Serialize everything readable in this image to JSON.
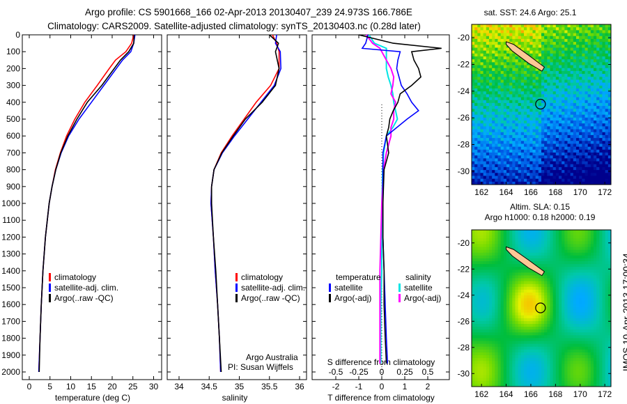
{
  "header": {
    "line1": "Argo profile: CS 5901668_166 02-Apr-2013 20130407_239 24.973S 166.786E",
    "line2": "Climatology: CARS2009. Satellite-adjusted climatology: synTS_20130403.nc (0.28d later)"
  },
  "footer_stamp": "IMOS 10-Apr-2013 17:00:34",
  "colors": {
    "clim": "#ff0000",
    "sat": "#0000ff",
    "argo": "#000000",
    "cyan": "#00e5e5",
    "magenta": "#ff00ff"
  },
  "chart_data": [
    {
      "type": "line",
      "id": "temp",
      "xlabel": "temperature (deg C)",
      "xlim": [
        -1.7,
        32
      ],
      "ylim": [
        0,
        2060
      ],
      "xticks": [
        0,
        5,
        10,
        15,
        20,
        25,
        30
      ],
      "yticks": [
        0,
        100,
        200,
        300,
        400,
        500,
        600,
        700,
        800,
        900,
        1000,
        1100,
        1200,
        1300,
        1400,
        1500,
        1600,
        1700,
        1800,
        1900,
        2000
      ],
      "legend": [
        "climatology",
        "satellite-adj. clim.",
        "Argo(..raw -QC)"
      ],
      "depth": [
        0,
        50,
        100,
        150,
        200,
        300,
        400,
        500,
        600,
        700,
        800,
        900,
        1000,
        1200,
        1400,
        1600,
        1800,
        2000
      ],
      "series": [
        {
          "name": "climatology",
          "values": [
            25.2,
            24.7,
            23.3,
            20.8,
            19.3,
            16.4,
            13.4,
            11.0,
            9.0,
            7.5,
            6.3,
            5.5,
            4.8,
            3.9,
            3.3,
            2.9,
            2.6,
            2.3
          ]
        },
        {
          "name": "satellite-adj. clim.",
          "values": [
            25.5,
            25.2,
            24.5,
            22.5,
            21.0,
            18.0,
            15.0,
            12.0,
            9.5,
            7.7,
            6.4,
            5.5,
            4.8,
            3.9,
            3.3,
            2.9,
            2.6,
            2.3
          ]
        },
        {
          "name": "Argo",
          "values": [
            25.3,
            25.2,
            24.0,
            22.0,
            20.5,
            17.5,
            14.0,
            11.5,
            9.3,
            7.6,
            6.4,
            5.5,
            4.8,
            3.9,
            3.3,
            2.9,
            2.6,
            2.4
          ]
        }
      ]
    },
    {
      "type": "line",
      "id": "sal",
      "xlabel": "salinity",
      "xlim": [
        33.8,
        36.15
      ],
      "ylim": [
        0,
        2060
      ],
      "xticks": [
        34,
        34.5,
        35,
        35.5,
        36
      ],
      "legend": [
        "climatology",
        "satellite-adj. clim.",
        "Argo(..raw -QC)"
      ],
      "annotation": [
        "Argo Australia",
        "PI: Susan Wijffels"
      ],
      "depth": [
        0,
        50,
        100,
        200,
        300,
        400,
        500,
        600,
        700,
        800,
        900,
        1000,
        1200,
        1400,
        1600,
        1800,
        2000
      ],
      "series": [
        {
          "name": "climatology",
          "values": [
            35.55,
            35.62,
            35.66,
            35.66,
            35.52,
            35.28,
            35.08,
            34.88,
            34.7,
            34.58,
            34.54,
            34.53,
            34.57,
            34.6,
            34.64,
            34.67,
            34.69
          ]
        },
        {
          "name": "satellite-adj. clim.",
          "values": [
            35.62,
            35.6,
            35.68,
            35.69,
            35.58,
            35.36,
            35.14,
            34.92,
            34.72,
            34.58,
            34.54,
            34.53,
            34.57,
            34.6,
            34.64,
            34.67,
            34.69
          ]
        },
        {
          "name": "Argo",
          "values": [
            35.5,
            35.65,
            35.6,
            35.66,
            35.6,
            35.38,
            35.1,
            34.9,
            34.71,
            34.58,
            34.54,
            34.54,
            34.57,
            34.61,
            34.64,
            34.67,
            34.7
          ]
        }
      ]
    },
    {
      "type": "line",
      "id": "diff",
      "xlabel": "T difference from climatology",
      "x2label": "S difference from climatology",
      "xlim": [
        -3,
        3
      ],
      "x2lim": [
        -0.75,
        0.75
      ],
      "ylim": [
        0,
        2060
      ],
      "xticks": [
        -2,
        -1,
        0,
        1,
        2
      ],
      "x2ticks": [
        "-0.5",
        "-0.25",
        "0",
        "0.25",
        "0.5"
      ],
      "legend": {
        "temperature": "temperature",
        "salinity": "salinity",
        "sat": "satellite",
        "argo": "Argo(-adj)"
      },
      "depth": [
        0,
        50,
        80,
        100,
        150,
        200,
        250,
        300,
        350,
        400,
        450,
        500,
        550,
        600,
        700,
        800,
        1000,
        1200,
        1400,
        1600,
        1800,
        1950
      ],
      "series": [
        {
          "name": "T satellite",
          "values": [
            -0.6,
            -0.7,
            -0.85,
            0.8,
            0.7,
            0.65,
            0.75,
            0.85,
            1.1,
            1.3,
            1.6,
            1.1,
            0.65,
            0.2,
            0.05,
            0.05,
            0.05,
            0.05,
            0.1,
            0.15,
            0.2,
            0.25
          ]
        },
        {
          "name": "T Argo(-adj)",
          "values": [
            -1.0,
            0.5,
            2.6,
            1.3,
            1.4,
            1.6,
            1.7,
            1.3,
            0.8,
            0.7,
            0.5,
            0.35,
            0.3,
            0.2,
            0.3,
            0.1,
            0.05,
            0.05,
            0.1,
            0.1,
            0.15,
            0.2
          ]
        },
        {
          "name": "S satellite",
          "values": [
            -0.14,
            -0.08,
            0.05,
            0.05,
            0.05,
            0.05,
            0.07,
            0.1,
            0.12,
            0.13,
            0.15,
            0.17,
            0.12,
            0.05,
            0.02,
            0.01,
            0.0,
            0.0,
            0.0,
            -0.01,
            -0.01,
            -0.01
          ]
        },
        {
          "name": "S Argo(-adj)",
          "values": [
            -0.17,
            -0.1,
            -0.02,
            0.0,
            0.05,
            0.1,
            0.13,
            0.12,
            0.1,
            0.15,
            0.13,
            0.13,
            0.1,
            0.1,
            0.05,
            0.02,
            0.0,
            -0.01,
            -0.02,
            -0.02,
            -0.02,
            -0.02
          ]
        }
      ]
    },
    {
      "type": "heatmap",
      "id": "sst",
      "title": "sat. SST: 24.6 Argo: 25.1",
      "xlim": [
        161.2,
        172.5
      ],
      "ylim": [
        -31,
        -19
      ],
      "xticks": [
        162,
        164,
        166,
        168,
        170,
        172
      ],
      "yticks": [
        -20,
        -22,
        -24,
        -26,
        -28,
        -30
      ],
      "argo_position": [
        166.786,
        -24.973
      ]
    },
    {
      "type": "heatmap",
      "id": "sla",
      "title": [
        "Altim. SLA: 0.15",
        "Argo h1000: 0.18 h2000: 0.19"
      ],
      "xlim": [
        161.2,
        172.5
      ],
      "ylim": [
        -31,
        -19
      ],
      "xticks": [
        162,
        164,
        166,
        168,
        170,
        172
      ],
      "yticks": [
        -20,
        -22,
        -24,
        -26,
        -28,
        -30
      ],
      "argo_position": [
        166.786,
        -24.973
      ]
    }
  ]
}
